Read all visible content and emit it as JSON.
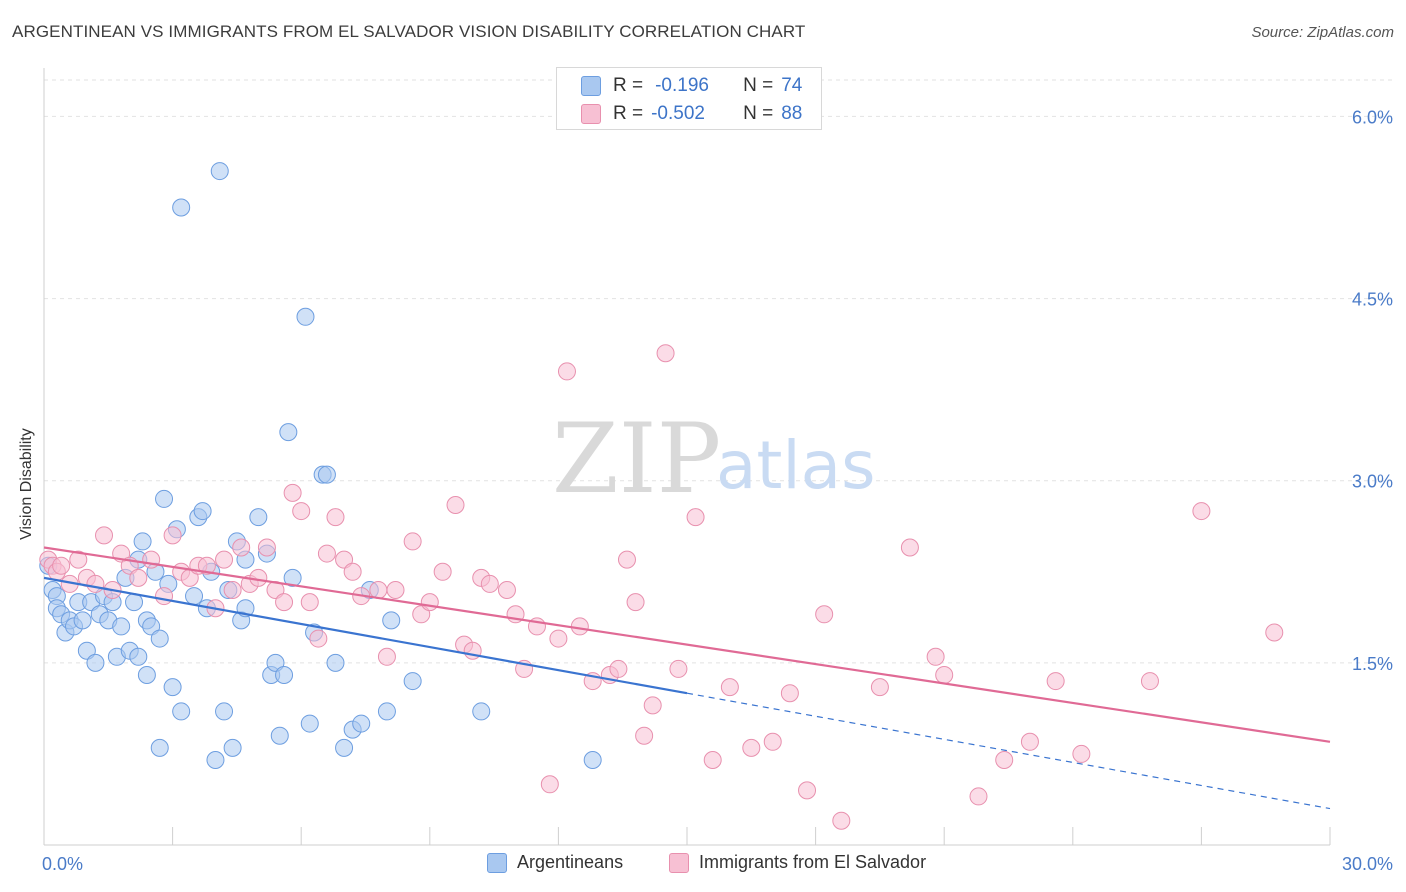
{
  "title": "ARGENTINEAN VS IMMIGRANTS FROM EL SALVADOR VISION DISABILITY CORRELATION CHART",
  "source": "Source: ZipAtlas.com",
  "watermark": {
    "zip": "ZIP",
    "atlas": "atlas"
  },
  "stats": [
    {
      "r_label": "R =",
      "r_value": "-0.196",
      "n_label": "N =",
      "n_value": "74",
      "color": "#a9c8f0",
      "border": "#6d9ee0"
    },
    {
      "r_label": "R =",
      "r_value": "-0.502",
      "n_label": "N =",
      "n_value": "88",
      "color": "#f7c0d3",
      "border": "#e890ae"
    }
  ],
  "legend": [
    {
      "label": "Argentineans",
      "color": "#a9c8f0",
      "border": "#6d9ee0"
    },
    {
      "label": "Immigrants from El Salvador",
      "color": "#f7c0d3",
      "border": "#e890ae"
    }
  ],
  "chart_data": {
    "type": "scatter",
    "ylabel": "Vision Disability",
    "xlim": [
      0,
      30
    ],
    "ylim": [
      0,
      6.3
    ],
    "x_tick_labels": [
      {
        "value": 0,
        "label": "0.0%"
      },
      {
        "value": 30,
        "label": "30.0%"
      }
    ],
    "y_ticks": [
      {
        "value": 1.5,
        "label": "1.5%"
      },
      {
        "value": 3.0,
        "label": "3.0%"
      },
      {
        "value": 4.5,
        "label": "4.5%"
      },
      {
        "value": 6.0,
        "label": "6.0%"
      }
    ],
    "x_minor_ticks": [
      3,
      6,
      9,
      12,
      15,
      18,
      21,
      24,
      27,
      30
    ],
    "grid": true,
    "series": [
      {
        "name": "Argentineans",
        "color": "#a9c8f0",
        "stroke": "#6d9ee0",
        "trend": {
          "x0": 0,
          "y0": 2.2,
          "x1": 15,
          "y1": 1.25,
          "dash_to_x": 30,
          "dash_to_y": 0.3,
          "color": "#3a74d0"
        },
        "points": [
          [
            0.1,
            2.3
          ],
          [
            0.2,
            2.1
          ],
          [
            0.3,
            2.05
          ],
          [
            0.3,
            1.95
          ],
          [
            0.4,
            1.9
          ],
          [
            0.5,
            1.75
          ],
          [
            0.6,
            1.85
          ],
          [
            0.7,
            1.8
          ],
          [
            0.8,
            2.0
          ],
          [
            0.9,
            1.85
          ],
          [
            1.0,
            1.6
          ],
          [
            1.1,
            2.0
          ],
          [
            1.2,
            1.5
          ],
          [
            1.3,
            1.9
          ],
          [
            1.4,
            2.05
          ],
          [
            1.5,
            1.85
          ],
          [
            1.6,
            2.0
          ],
          [
            1.7,
            1.55
          ],
          [
            1.8,
            1.8
          ],
          [
            1.9,
            2.2
          ],
          [
            2.0,
            1.6
          ],
          [
            2.1,
            2.0
          ],
          [
            2.2,
            1.55
          ],
          [
            2.2,
            2.35
          ],
          [
            2.3,
            2.5
          ],
          [
            2.4,
            1.4
          ],
          [
            2.4,
            1.85
          ],
          [
            2.5,
            1.8
          ],
          [
            2.6,
            2.25
          ],
          [
            2.7,
            0.8
          ],
          [
            2.7,
            1.7
          ],
          [
            2.8,
            2.85
          ],
          [
            2.9,
            2.15
          ],
          [
            3.0,
            1.3
          ],
          [
            3.1,
            2.6
          ],
          [
            3.2,
            1.1
          ],
          [
            3.5,
            2.05
          ],
          [
            3.6,
            2.7
          ],
          [
            3.7,
            2.75
          ],
          [
            3.8,
            1.95
          ],
          [
            3.9,
            2.25
          ],
          [
            4.0,
            0.7
          ],
          [
            4.1,
            5.55
          ],
          [
            4.2,
            1.1
          ],
          [
            4.3,
            2.1
          ],
          [
            4.4,
            0.8
          ],
          [
            4.5,
            2.5
          ],
          [
            4.6,
            1.85
          ],
          [
            4.7,
            1.95
          ],
          [
            4.7,
            2.35
          ],
          [
            5.0,
            2.7
          ],
          [
            5.2,
            2.4
          ],
          [
            5.3,
            1.4
          ],
          [
            5.4,
            1.5
          ],
          [
            5.5,
            0.9
          ],
          [
            5.6,
            1.4
          ],
          [
            5.8,
            2.2
          ],
          [
            6.1,
            4.35
          ],
          [
            6.2,
            1.0
          ],
          [
            6.3,
            1.75
          ],
          [
            6.5,
            3.05
          ],
          [
            6.6,
            3.05
          ],
          [
            6.8,
            1.5
          ],
          [
            7.0,
            0.8
          ],
          [
            7.2,
            0.95
          ],
          [
            7.4,
            1.0
          ],
          [
            7.6,
            2.1
          ],
          [
            8.0,
            1.1
          ],
          [
            8.1,
            1.85
          ],
          [
            8.6,
            1.35
          ],
          [
            10.2,
            1.1
          ],
          [
            12.8,
            0.7
          ],
          [
            3.2,
            5.25
          ],
          [
            5.7,
            3.4
          ]
        ]
      },
      {
        "name": "Immigrants from El Salvador",
        "color": "#f7c0d3",
        "stroke": "#e890ae",
        "trend": {
          "x0": 0,
          "y0": 2.45,
          "x1": 30,
          "y1": 0.85,
          "color": "#e06a95"
        },
        "points": [
          [
            0.1,
            2.35
          ],
          [
            0.2,
            2.3
          ],
          [
            0.3,
            2.25
          ],
          [
            0.4,
            2.3
          ],
          [
            0.6,
            2.15
          ],
          [
            0.8,
            2.35
          ],
          [
            1.0,
            2.2
          ],
          [
            1.2,
            2.15
          ],
          [
            1.4,
            2.55
          ],
          [
            1.6,
            2.1
          ],
          [
            1.8,
            2.4
          ],
          [
            2.0,
            2.3
          ],
          [
            2.2,
            2.2
          ],
          [
            2.5,
            2.35
          ],
          [
            2.8,
            2.05
          ],
          [
            3.0,
            2.55
          ],
          [
            3.2,
            2.25
          ],
          [
            3.4,
            2.2
          ],
          [
            3.6,
            2.3
          ],
          [
            3.8,
            2.3
          ],
          [
            4.0,
            1.95
          ],
          [
            4.2,
            2.35
          ],
          [
            4.4,
            2.1
          ],
          [
            4.6,
            2.45
          ],
          [
            4.8,
            2.15
          ],
          [
            5.0,
            2.2
          ],
          [
            5.2,
            2.45
          ],
          [
            5.4,
            2.1
          ],
          [
            5.6,
            2.0
          ],
          [
            5.8,
            2.9
          ],
          [
            6.0,
            2.75
          ],
          [
            6.2,
            2.0
          ],
          [
            6.4,
            1.7
          ],
          [
            6.6,
            2.4
          ],
          [
            6.8,
            2.7
          ],
          [
            7.0,
            2.35
          ],
          [
            7.2,
            2.25
          ],
          [
            7.4,
            2.05
          ],
          [
            7.8,
            2.1
          ],
          [
            8.0,
            1.55
          ],
          [
            8.2,
            2.1
          ],
          [
            8.6,
            2.5
          ],
          [
            8.8,
            1.9
          ],
          [
            9.0,
            2.0
          ],
          [
            9.3,
            2.25
          ],
          [
            9.6,
            2.8
          ],
          [
            9.8,
            1.65
          ],
          [
            10.0,
            1.6
          ],
          [
            10.2,
            2.2
          ],
          [
            10.4,
            2.15
          ],
          [
            10.8,
            2.1
          ],
          [
            11.0,
            1.9
          ],
          [
            11.2,
            1.45
          ],
          [
            11.5,
            1.8
          ],
          [
            11.8,
            0.5
          ],
          [
            12.0,
            1.7
          ],
          [
            12.2,
            3.9
          ],
          [
            12.5,
            1.8
          ],
          [
            12.8,
            1.35
          ],
          [
            13.2,
            1.4
          ],
          [
            13.4,
            1.45
          ],
          [
            13.6,
            2.35
          ],
          [
            13.8,
            2.0
          ],
          [
            14.0,
            0.9
          ],
          [
            14.2,
            1.15
          ],
          [
            14.5,
            4.05
          ],
          [
            14.8,
            1.45
          ],
          [
            15.2,
            2.7
          ],
          [
            15.6,
            0.7
          ],
          [
            16.0,
            1.3
          ],
          [
            16.5,
            0.8
          ],
          [
            17.0,
            0.85
          ],
          [
            17.4,
            1.25
          ],
          [
            17.8,
            0.45
          ],
          [
            18.2,
            1.9
          ],
          [
            18.6,
            0.2
          ],
          [
            19.5,
            1.3
          ],
          [
            20.2,
            2.45
          ],
          [
            20.8,
            1.55
          ],
          [
            21.0,
            1.4
          ],
          [
            21.8,
            0.4
          ],
          [
            22.4,
            0.7
          ],
          [
            23.0,
            0.85
          ],
          [
            23.6,
            1.35
          ],
          [
            24.2,
            0.75
          ],
          [
            25.8,
            1.35
          ],
          [
            27.0,
            2.75
          ],
          [
            28.7,
            1.75
          ]
        ]
      }
    ]
  }
}
